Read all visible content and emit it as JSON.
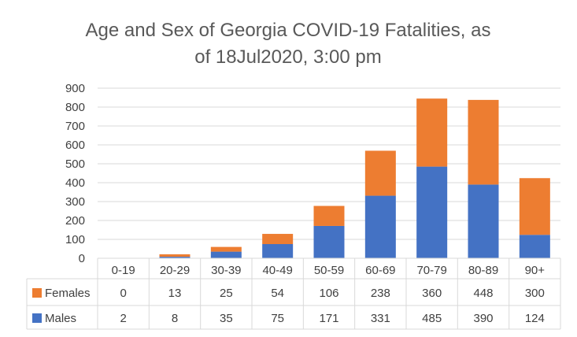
{
  "chart_data": {
    "type": "bar",
    "stacked": true,
    "title": "Age and Sex of Georgia COVID-19 Fatalities, as of 18Jul2020, 3:00 pm",
    "title_lines": [
      "Age and Sex of Georgia COVID-19 Fatalities, as",
      "of 18Jul2020, 3:00 pm"
    ],
    "categories": [
      "0-19",
      "20-29",
      "30-39",
      "40-49",
      "50-59",
      "60-69",
      "70-79",
      "80-89",
      "90+"
    ],
    "series": [
      {
        "name": "Males",
        "color": "#4472C4",
        "values": [
          2,
          8,
          35,
          75,
          171,
          331,
          485,
          390,
          124
        ]
      },
      {
        "name": "Females",
        "color": "#ED7D31",
        "values": [
          0,
          13,
          25,
          54,
          106,
          238,
          360,
          448,
          300
        ]
      }
    ],
    "ylim": [
      0,
      900
    ],
    "yticks": [
      0,
      100,
      200,
      300,
      400,
      500,
      600,
      700,
      800,
      900
    ],
    "grid": true,
    "legend": "data-table-below"
  }
}
